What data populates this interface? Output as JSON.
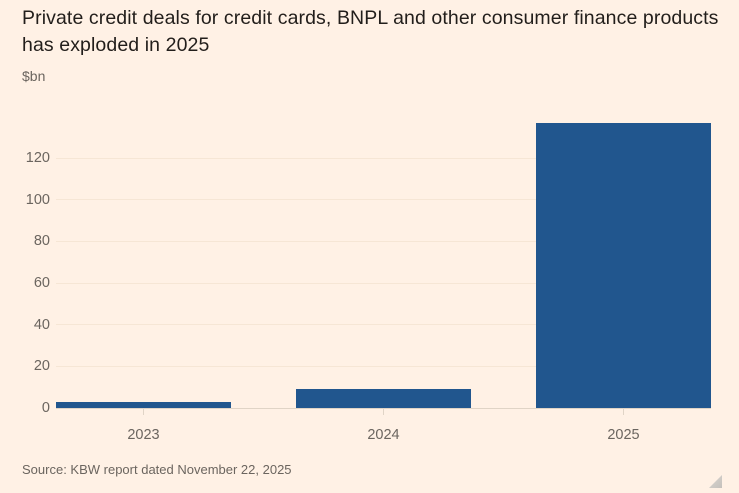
{
  "chart_data": {
    "type": "bar",
    "title": "Private credit deals for credit cards, BNPL and other consumer finance products has exploded in 2025",
    "unit_label": "$bn",
    "categories": [
      "2023",
      "2024",
      "2025"
    ],
    "values": [
      3,
      9,
      137
    ],
    "yticks": [
      0,
      20,
      40,
      60,
      80,
      100,
      120
    ],
    "ylim": [
      0,
      143
    ],
    "xlabel": "",
    "ylabel": "$bn",
    "grid": true,
    "legend_position": "none",
    "bar_color": "#21568e",
    "background_color": "#fff1e5",
    "source": "Source: KBW report dated November 22, 2025"
  },
  "resize_handle": {
    "icon": "resize-grip-triangle"
  }
}
